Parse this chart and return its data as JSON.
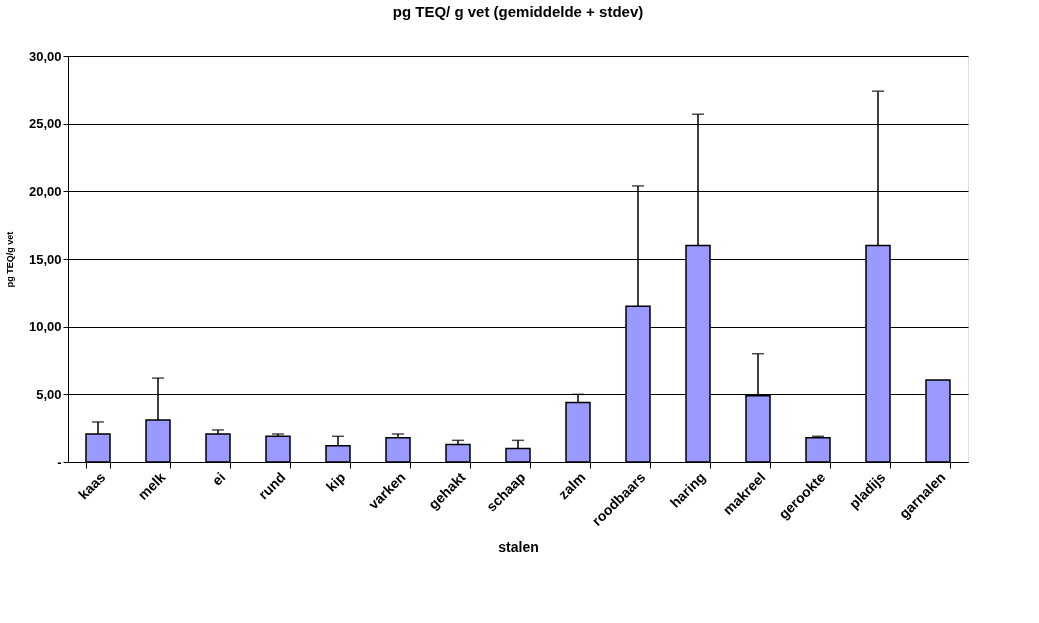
{
  "chart_data": {
    "type": "bar",
    "title": "pg TEQ/ g vet  (gemiddelde + stdev)",
    "xlabel": "stalen",
    "ylabel": "pg TEQ/g vet",
    "categories": [
      "kaas",
      "melk",
      "ei",
      "rund",
      "kip",
      "varken",
      "gehakt",
      "schaap",
      "zalm",
      "roodbaars",
      "haring",
      "makreel",
      "gerookte",
      "pladijs",
      "garnalen"
    ],
    "values": [
      2.07,
      3.1,
      2.07,
      1.9,
      1.2,
      1.8,
      1.3,
      1.0,
      4.4,
      11.5,
      16.0,
      4.9,
      1.8,
      16.0,
      6.05
    ],
    "errors": [
      [
        2.07,
        2.96
      ],
      [
        3.1,
        6.2
      ],
      [
        2.07,
        2.37
      ],
      [
        1.9,
        2.07
      ],
      [
        1.2,
        1.9
      ],
      [
        1.8,
        2.07
      ],
      [
        1.3,
        1.6
      ],
      [
        1.0,
        1.6
      ],
      [
        4.4,
        5.0
      ],
      [
        11.5,
        20.4
      ],
      [
        16.0,
        25.7
      ],
      [
        4.9,
        8.0
      ],
      [
        1.8,
        1.9
      ],
      [
        16.0,
        27.4
      ],
      null
    ],
    "color": "#9999ff",
    "ylim": [
      0,
      30
    ],
    "yticks": [
      {
        "value": 0,
        "label": "-"
      },
      {
        "value": 5,
        "label": "5,00"
      },
      {
        "value": 10,
        "label": "10,00"
      },
      {
        "value": 15,
        "label": "15,00"
      },
      {
        "value": 20,
        "label": "20,00"
      },
      {
        "value": 25,
        "label": "25,00"
      },
      {
        "value": 30,
        "label": "30,00"
      }
    ],
    "grid": "y"
  }
}
